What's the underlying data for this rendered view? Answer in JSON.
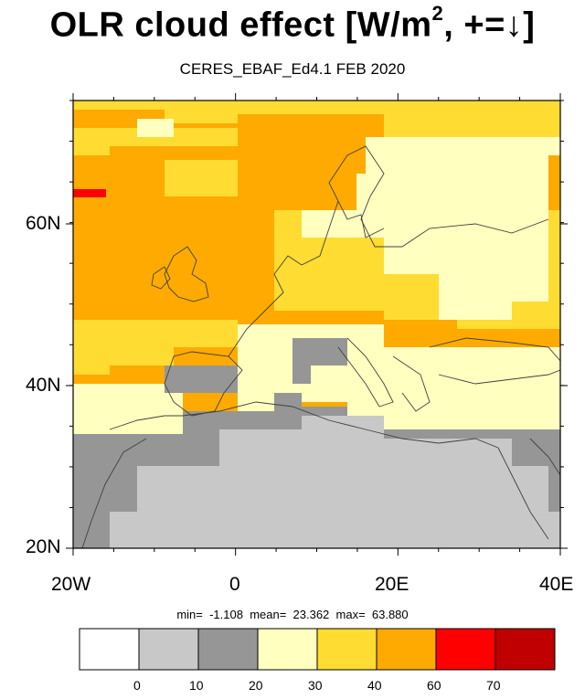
{
  "title": {
    "main": "OLR cloud effect [W/m",
    "sup": "2",
    "tail": ", +=↓]"
  },
  "subtitle": "CERES_EBAF_Ed4.1 FEB 2020",
  "axes": {
    "x_ticks": [
      "20W",
      "0",
      "20E",
      "40E"
    ],
    "y_ticks": [
      "60N",
      "40N",
      "20N"
    ]
  },
  "stats": {
    "text": "min=  -1.108  mean=  23.362  max=  63.880",
    "min": -1.108,
    "mean": 23.362,
    "max": 63.88
  },
  "colorbar": {
    "colors": [
      "#ffffff",
      "#c8c8c8",
      "#969696",
      "#ffffc0",
      "#ffdc32",
      "#ffaa00",
      "#ff0000",
      "#c00000"
    ],
    "labels": [
      "0",
      "10",
      "20",
      "30",
      "40",
      "60",
      "70"
    ]
  }
}
